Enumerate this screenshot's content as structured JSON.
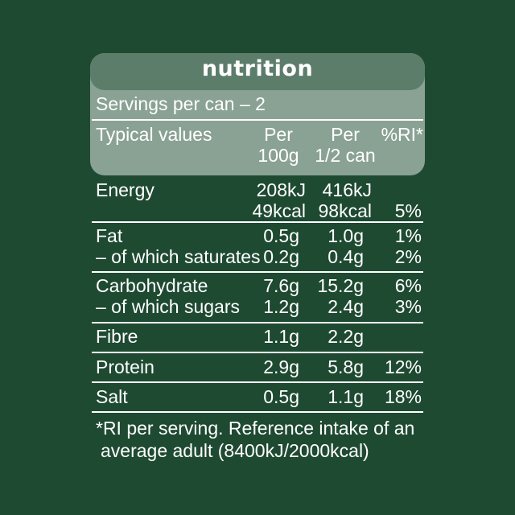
{
  "title": "nutrition",
  "servings": "Servings per can – 2",
  "headers": {
    "typical": "Typical values",
    "per100_l1": "Per",
    "per100_l2": "100g",
    "perhalf_l1": "Per",
    "perhalf_l2": "1/2 can",
    "ri": "%RI*"
  },
  "rows": {
    "energy": {
      "label": "Energy",
      "per100_kj": "208kJ",
      "per100_kcal": "49kcal",
      "half_kj": "416kJ",
      "half_kcal": "98kcal",
      "ri": "5%"
    },
    "fat": {
      "label": "Fat",
      "per100": "0.5g",
      "half": "1.0g",
      "ri": "1%"
    },
    "saturates": {
      "label": "– of which saturates",
      "per100": "0.2g",
      "half": "0.4g",
      "ri": "2%"
    },
    "carbohydrate": {
      "label": "Carbohydrate",
      "per100": "7.6g",
      "half": "15.2g",
      "ri": "6%"
    },
    "sugars": {
      "label": "– of which sugars",
      "per100": "1.2g",
      "half": "2.4g",
      "ri": "3%"
    },
    "fibre": {
      "label": "Fibre",
      "per100": "1.1g",
      "half": "2.2g",
      "ri": ""
    },
    "protein": {
      "label": "Protein",
      "per100": "2.9g",
      "half": "5.8g",
      "ri": "12%"
    },
    "salt": {
      "label": "Salt",
      "per100": "0.5g",
      "half": "1.1g",
      "ri": "18%"
    }
  },
  "footnote": {
    "line1": "*RI per serving. Reference intake of an",
    "line2": "average adult (8400kJ/2000kcal)"
  },
  "colors": {
    "background": "#1f4a32",
    "header_panel": "#8aa294",
    "title_bar": "#5d7d6b",
    "text": "#ffffff"
  }
}
